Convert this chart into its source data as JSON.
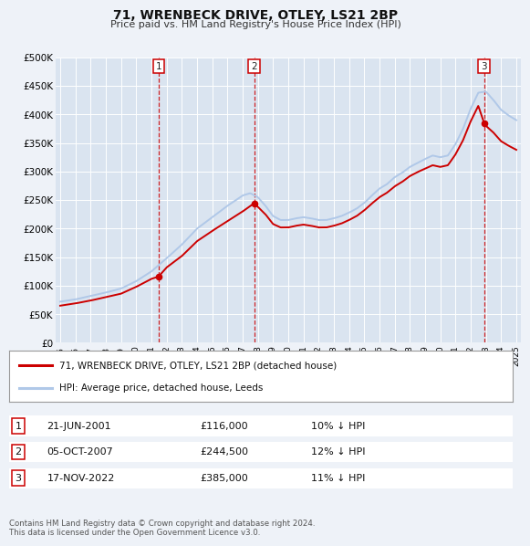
{
  "title": "71, WRENBECK DRIVE, OTLEY, LS21 2BP",
  "subtitle": "Price paid vs. HM Land Registry's House Price Index (HPI)",
  "ylim": [
    0,
    500000
  ],
  "yticks": [
    0,
    50000,
    100000,
    150000,
    200000,
    250000,
    300000,
    350000,
    400000,
    450000,
    500000
  ],
  "ytick_labels": [
    "£0",
    "£50K",
    "£100K",
    "£150K",
    "£200K",
    "£250K",
    "£300K",
    "£350K",
    "£400K",
    "£450K",
    "£500K"
  ],
  "background_color": "#eef2f8",
  "plot_bg_color": "#dae4f0",
  "grid_color": "#ffffff",
  "hpi_color": "#b0c8e8",
  "sale_color": "#cc0000",
  "legend_entries": [
    {
      "label": "71, WRENBECK DRIVE, OTLEY, LS21 2BP (detached house)",
      "color": "#cc0000"
    },
    {
      "label": "HPI: Average price, detached house, Leeds",
      "color": "#b0c8e8"
    }
  ],
  "table_rows": [
    {
      "num": "1",
      "date": "21-JUN-2001",
      "price": "£116,000",
      "hpi": "10% ↓ HPI"
    },
    {
      "num": "2",
      "date": "05-OCT-2007",
      "price": "£244,500",
      "hpi": "12% ↓ HPI"
    },
    {
      "num": "3",
      "date": "17-NOV-2022",
      "price": "£385,000",
      "hpi": "11% ↓ HPI"
    }
  ],
  "footer": [
    "Contains HM Land Registry data © Crown copyright and database right 2024.",
    "This data is licensed under the Open Government Licence v3.0."
  ],
  "x_start_year": 1995,
  "x_end_year": 2025,
  "purchase_years": [
    2001.47,
    2007.76,
    2022.88
  ],
  "purchase_prices": [
    116000,
    244500,
    385000
  ],
  "purchase_labels": [
    "1",
    "2",
    "3"
  ]
}
